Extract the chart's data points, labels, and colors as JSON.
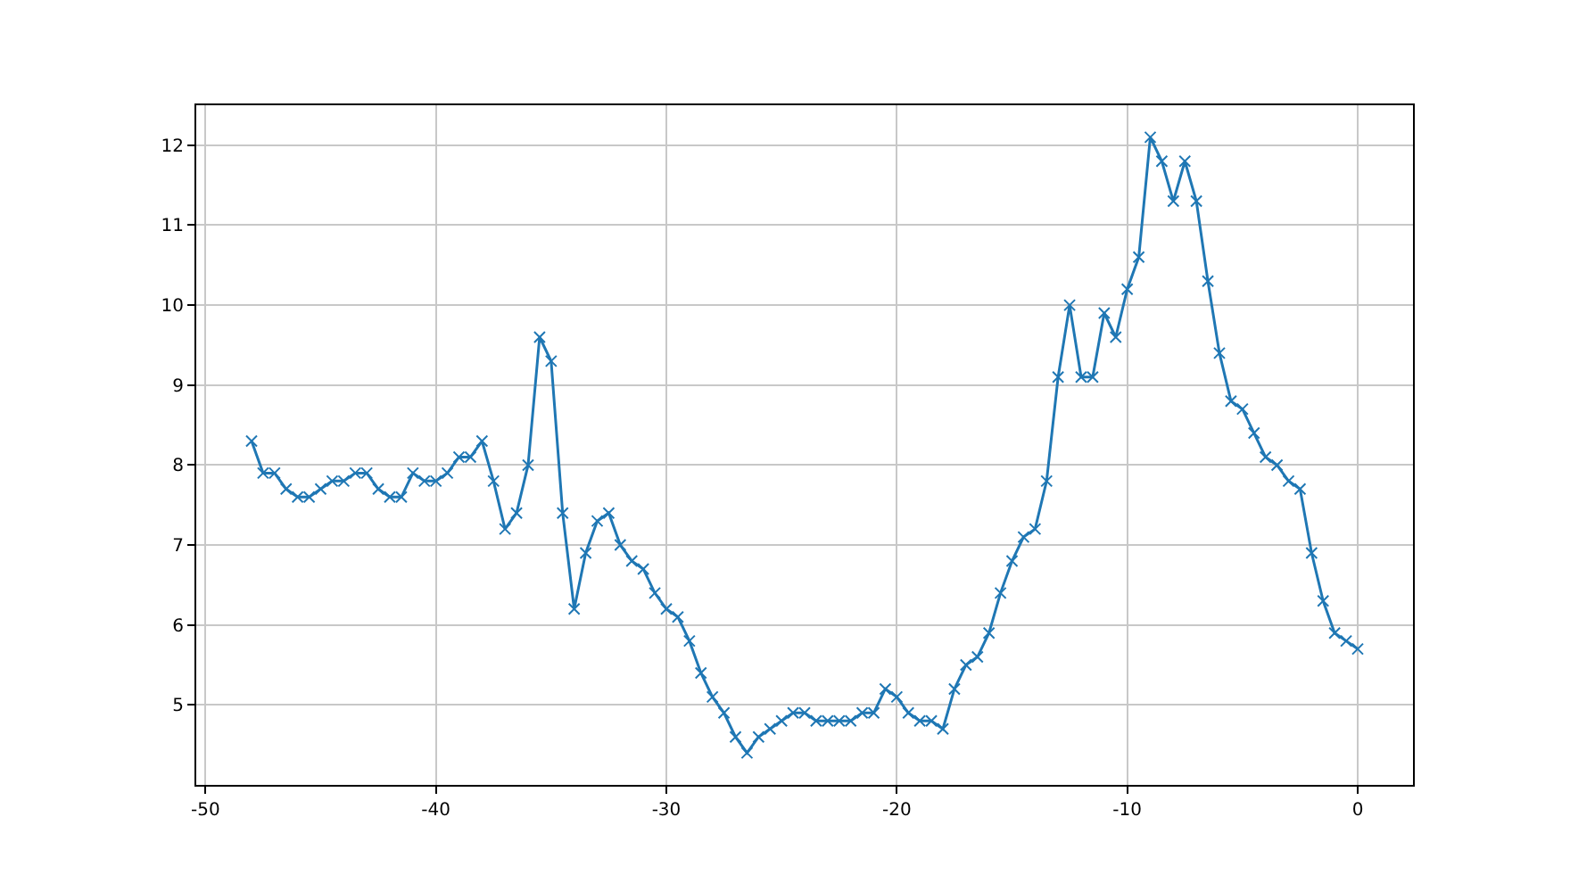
{
  "chart_data": {
    "type": "line",
    "x": [
      -48,
      -47.5,
      -47,
      -46.5,
      -46,
      -45.5,
      -45,
      -44.5,
      -44,
      -43.5,
      -43,
      -42.5,
      -42,
      -41.5,
      -41,
      -40.5,
      -40,
      -39.5,
      -39,
      -38.5,
      -38,
      -37.5,
      -37,
      -36.5,
      -36,
      -35.5,
      -35,
      -34.5,
      -34,
      -33.5,
      -33,
      -32.5,
      -32,
      -31.5,
      -31,
      -30.5,
      -30,
      -29.5,
      -29,
      -28.5,
      -28,
      -27.5,
      -27,
      -26.5,
      -26,
      -25.5,
      -25,
      -24.5,
      -24,
      -23.5,
      -23,
      -22.5,
      -22,
      -21.5,
      -21,
      -20.5,
      -20,
      -19.5,
      -19,
      -18.5,
      -18,
      -17.5,
      -17,
      -16.5,
      -16,
      -15.5,
      -15,
      -14.5,
      -14,
      -13.5,
      -13,
      -12.5,
      -12,
      -11.5,
      -11,
      -10.5,
      -10,
      -9.5,
      -9,
      -8.5,
      -8,
      -7.5,
      -7,
      -6.5,
      -6,
      -5.5,
      -5,
      -4.5,
      -4,
      -3.5,
      -3,
      -2.5,
      -2,
      -1.5,
      -1,
      -0.5,
      0
    ],
    "series": [
      {
        "color": "#1f77b4",
        "values": [
          8.3,
          7.9,
          7.9,
          7.7,
          7.6,
          7.6,
          7.7,
          7.8,
          7.8,
          7.9,
          7.9,
          7.7,
          7.6,
          7.6,
          7.9,
          7.8,
          7.8,
          7.9,
          8.1,
          8.1,
          8.3,
          7.8,
          7.2,
          7.4,
          8.0,
          9.6,
          9.3,
          7.4,
          6.2,
          6.9,
          7.3,
          7.4,
          7.0,
          6.8,
          6.7,
          6.4,
          6.2,
          6.1,
          5.8,
          5.4,
          5.1,
          4.9,
          4.6,
          4.4,
          4.6,
          4.7,
          4.8,
          4.9,
          4.9,
          4.8,
          4.8,
          4.8,
          4.8,
          4.9,
          4.9,
          5.2,
          5.1,
          4.9,
          4.8,
          4.8,
          4.7,
          5.2,
          5.5,
          5.6,
          5.9,
          6.4,
          6.8,
          7.1,
          7.2,
          7.8,
          9.1,
          10.0,
          9.1,
          9.1,
          9.9,
          9.6,
          10.2,
          10.6,
          12.1,
          11.8,
          11.3,
          11.8,
          11.3,
          10.3,
          9.4,
          8.8,
          8.7,
          8.4,
          8.1,
          8.0,
          7.8,
          7.7,
          6.9,
          6.3,
          5.9,
          5.8,
          5.7
        ]
      }
    ],
    "xlim": [
      -50.4,
      2.4
    ],
    "xticks": [
      -50,
      -40,
      -30,
      -20,
      -10,
      0
    ],
    "ylim": [
      4.0,
      12.5
    ],
    "yticks": [
      5,
      6,
      7,
      8,
      9,
      10,
      11,
      12
    ],
    "grid": true,
    "marker": "cross",
    "line_style": "solid"
  }
}
